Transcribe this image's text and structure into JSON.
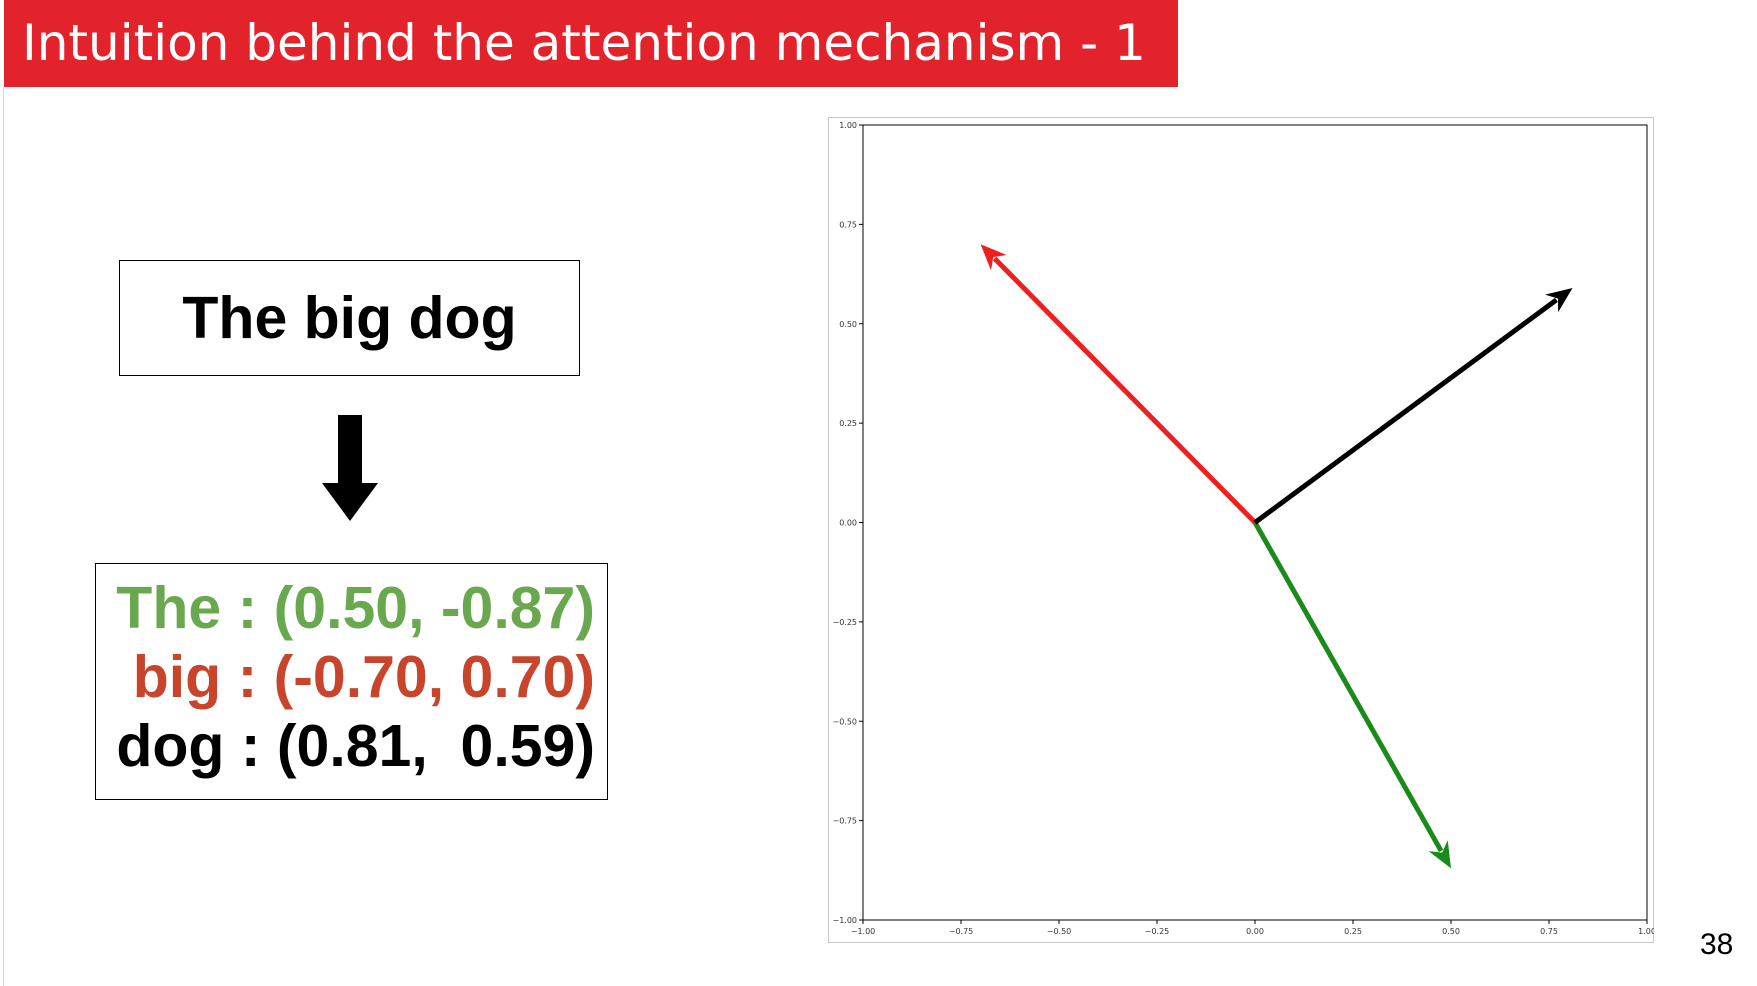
{
  "slide": {
    "title": "Intuition behind the attention mechanism - 1",
    "page_number": "38"
  },
  "sentence": "The big dog",
  "arrow_icon": "down-arrow-icon",
  "vectors": [
    {
      "text": "The : (0.50, -0.87)",
      "color": "#6aa84f"
    },
    {
      "text": "big : (-0.70, 0.70)",
      "color": "#c8452c"
    },
    {
      "text": "dog : (0.81,  0.59)",
      "color": "#000000"
    }
  ],
  "chart_data": {
    "type": "quiver",
    "title": "",
    "xlabel": "",
    "ylabel": "",
    "xlim": [
      -1.0,
      1.0
    ],
    "ylim": [
      -1.0,
      1.0
    ],
    "grid": false,
    "x_ticks": [
      "−1.00",
      "−0.75",
      "−0.50",
      "−0.25",
      "0.00",
      "0.25",
      "0.50",
      "0.75",
      "1.00"
    ],
    "y_ticks": [
      "1.00",
      "0.75",
      "0.50",
      "0.25",
      "0.00",
      "−0.25",
      "−0.50",
      "−0.75",
      "−1.00"
    ],
    "x_tick_values": [
      -1.0,
      -0.75,
      -0.5,
      -0.25,
      0.0,
      0.25,
      0.5,
      0.75,
      1.0
    ],
    "y_tick_values": [
      1.0,
      0.75,
      0.5,
      0.25,
      0.0,
      -0.25,
      -0.5,
      -0.75,
      -1.0
    ],
    "arrows": [
      {
        "x0": 0,
        "y0": 0,
        "x1": 0.5,
        "y1": -0.87,
        "color": "#1a8a1a"
      },
      {
        "x0": 0,
        "y0": 0,
        "x1": -0.7,
        "y1": 0.7,
        "color": "#f01f1f"
      },
      {
        "x0": 0,
        "y0": 0,
        "x1": 0.81,
        "y1": 0.59,
        "color": "#000000"
      }
    ]
  }
}
